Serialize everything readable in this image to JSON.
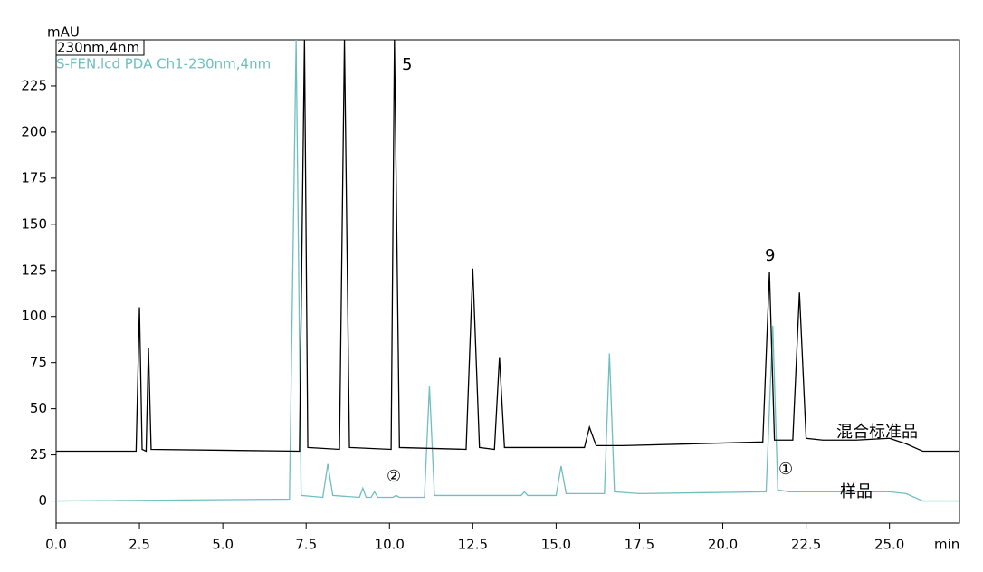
{
  "chart_data": {
    "type": "line",
    "y_label": "mAU",
    "x_label": "min",
    "xlim": [
      0,
      27.1
    ],
    "ylim": [
      -12,
      250
    ],
    "xticks": [
      {
        "value": 0,
        "label": "0.0"
      },
      2.5,
      {
        "value": 5,
        "label": "5.0"
      },
      7.5,
      {
        "value": 10,
        "label": "10.0"
      },
      12.5,
      {
        "value": 15,
        "label": "15.0"
      },
      17.5,
      {
        "value": 20,
        "label": "20.0"
      },
      22.5,
      {
        "value": 25,
        "label": "25.0"
      }
    ],
    "yticks": [
      0,
      25,
      50,
      75,
      100,
      125,
      150,
      175,
      200,
      225
    ],
    "series": [
      {
        "name": "230nm,4nm",
        "color": "#000000",
        "x": [
          0,
          2.4,
          2.5,
          2.58,
          2.7,
          2.77,
          2.85,
          7.3,
          7.45,
          7.55,
          8.5,
          8.65,
          8.8,
          10.05,
          10.15,
          10.3,
          12.3,
          12.5,
          12.7,
          13.15,
          13.3,
          13.45,
          15.85,
          16.0,
          16.2,
          17.0,
          21.2,
          21.4,
          21.55,
          22.1,
          22.3,
          22.5,
          23.0,
          24.0,
          25.0,
          25.5,
          26.0,
          27.1
        ],
        "values": [
          27,
          27,
          105,
          28,
          27,
          83,
          28,
          27,
          250,
          29,
          28,
          250,
          29,
          28,
          250,
          29,
          28,
          126,
          29,
          28,
          78,
          29,
          29,
          40,
          30,
          30,
          32,
          124,
          33,
          33,
          113,
          34,
          33,
          33,
          34,
          31,
          27,
          27
        ]
      },
      {
        "name": "S-FEN.lcd PDA Ch1-230nm,4nm",
        "color": "#6fbfbf",
        "x": [
          0,
          7.0,
          7.2,
          7.35,
          8.0,
          8.15,
          8.3,
          9.1,
          9.2,
          9.3,
          9.45,
          9.55,
          9.65,
          10.1,
          10.2,
          10.3,
          11.05,
          11.2,
          11.35,
          13.95,
          14.05,
          14.15,
          15.0,
          15.15,
          15.3,
          16.45,
          16.6,
          16.75,
          17.5,
          21.3,
          21.5,
          21.65,
          22.0,
          25.0,
          25.5,
          26.0,
          27.1
        ],
        "values": [
          0,
          1,
          250,
          3,
          2,
          20,
          3,
          2,
          7,
          2,
          2,
          5,
          2,
          2,
          3,
          2,
          2,
          62,
          3,
          3,
          5,
          3,
          3,
          19,
          4,
          4,
          80,
          5,
          4,
          5,
          95,
          6,
          5,
          5,
          4,
          0,
          0
        ]
      }
    ],
    "annotations": [
      "5",
      "9",
      "混合标准品",
      "样品",
      "①",
      "②"
    ]
  }
}
